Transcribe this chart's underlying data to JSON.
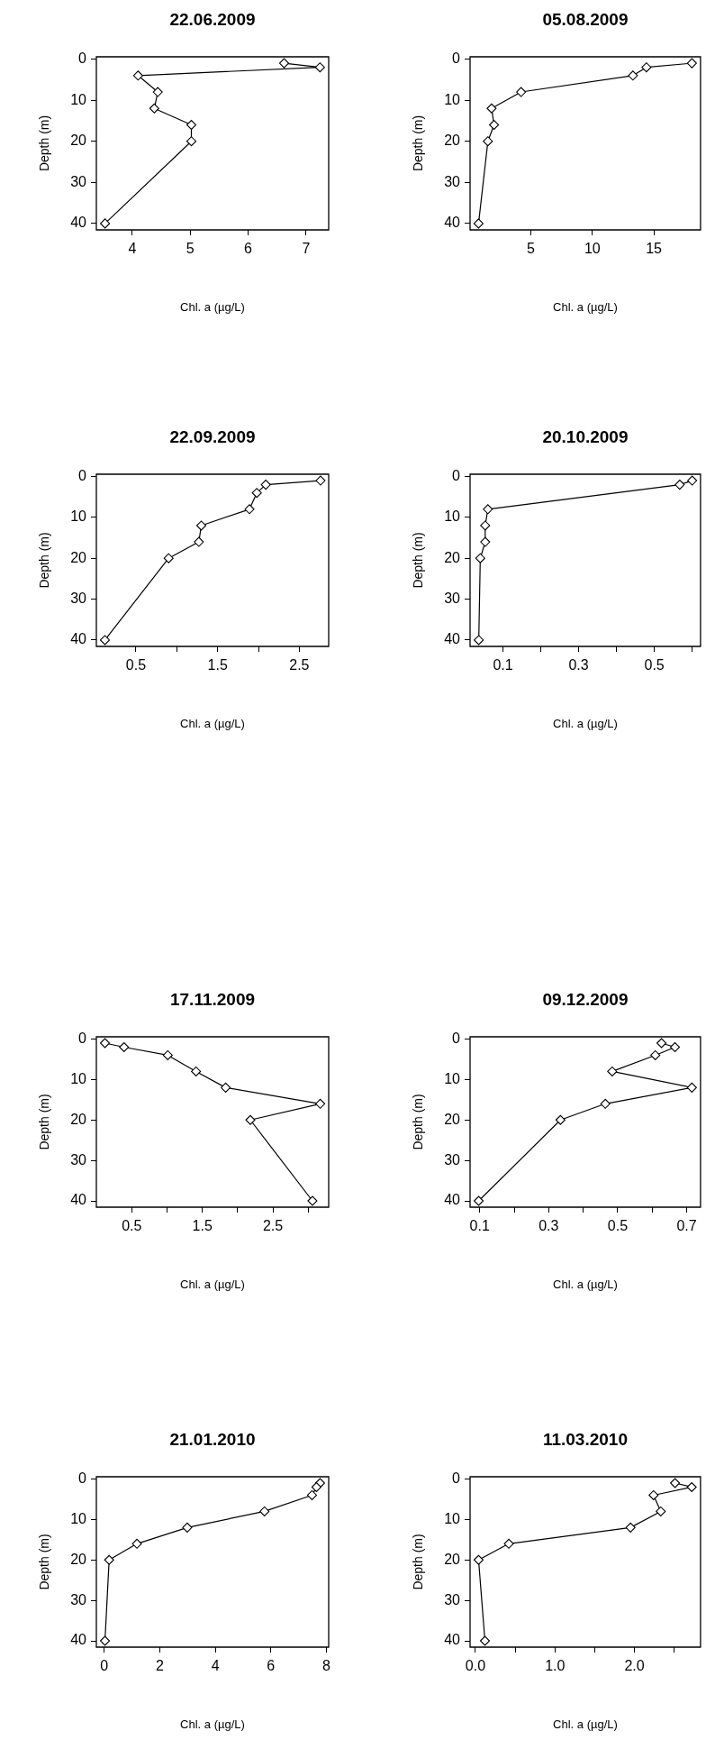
{
  "chart_data": [
    {
      "type": "line",
      "title": "22.06.2009",
      "xlabel": "Chl. a (µg/L)",
      "ylabel": "Depth (m)",
      "marker": "diamond",
      "grid": false,
      "legend": false,
      "color": "#000000",
      "x": [
        6.62,
        7.24,
        4.1,
        4.44,
        4.38,
        5.02,
        5.02,
        3.53
      ],
      "values": [
        1,
        2,
        4,
        8,
        12,
        16,
        20,
        40
      ],
      "xlim": [
        3.38,
        7.39
      ],
      "xticks": [
        4,
        5,
        6,
        7
      ],
      "ylim": [
        41.56,
        -0.56
      ],
      "yticks": [
        0,
        10,
        20,
        30,
        40
      ]
    },
    {
      "type": "line",
      "title": "05.08.2009",
      "xlabel": "Chl. a (µg/L)",
      "ylabel": "Depth (m)",
      "marker": "diamond",
      "grid": false,
      "legend": false,
      "color": "#000000",
      "x": [
        18.1,
        14.4,
        13.3,
        4.2,
        1.8,
        2.0,
        1.5,
        0.74
      ],
      "values": [
        1,
        2,
        4,
        8,
        12,
        16,
        20,
        40
      ],
      "xlim": [
        0.05,
        18.8
      ],
      "xticks": [
        5,
        10,
        15
      ],
      "ylim": [
        41.56,
        -0.56
      ],
      "yticks": [
        0,
        10,
        20,
        30,
        40
      ]
    },
    {
      "type": "line",
      "title": "22.09.2009",
      "xlabel": "Chl. a (µg/L)",
      "ylabel": "Depth (m)",
      "marker": "diamond",
      "grid": false,
      "legend": false,
      "color": "#000000",
      "x": [
        2.76,
        2.09,
        1.98,
        1.89,
        1.3,
        1.27,
        0.9,
        0.12
      ],
      "values": [
        1,
        2,
        4,
        8,
        12,
        16,
        20,
        40
      ],
      "xlim": [
        0.015,
        2.86
      ],
      "xticks": [
        0.5,
        {
          "value": 1,
          "label": null
        },
        1.5,
        {
          "value": 2,
          "label": null
        },
        2.5
      ],
      "ylim": [
        41.56,
        -0.56
      ],
      "yticks": [
        0,
        10,
        20,
        30,
        40
      ]
    },
    {
      "type": "line",
      "title": "20.10.2009",
      "xlabel": "Chl. a (µg/L)",
      "ylabel": "Depth (m)",
      "marker": "diamond",
      "grid": false,
      "legend": false,
      "color": "#000000",
      "x": [
        0.6,
        0.567,
        0.06,
        0.053,
        0.053,
        0.04,
        0.036
      ],
      "values": [
        1,
        2,
        8,
        12,
        16,
        20,
        40
      ],
      "xlim": [
        0.013,
        0.622
      ],
      "xticks": [
        0.1,
        {
          "value": 0.2,
          "label": null
        },
        0.3,
        {
          "value": 0.4,
          "label": null
        },
        0.5,
        {
          "value": 0.6,
          "label": null
        }
      ],
      "ylim": [
        41.56,
        -0.56
      ],
      "yticks": [
        0,
        10,
        20,
        30,
        40
      ]
    },
    {
      "type": "line",
      "title": "17.11.2009",
      "xlabel": "Chl. a (µg/L)",
      "ylabel": "Depth (m)",
      "marker": "diamond",
      "grid": false,
      "legend": false,
      "color": "#000000",
      "x": [
        0.12,
        0.39,
        1.01,
        1.41,
        1.83,
        3.17,
        2.18,
        3.06
      ],
      "values": [
        1,
        2,
        4,
        8,
        12,
        16,
        20,
        40
      ],
      "xlim": [
        -0.002,
        3.29
      ],
      "xticks": [
        0.5,
        {
          "value": 1,
          "label": null
        },
        1.5,
        {
          "value": 2,
          "label": null
        },
        2.5,
        {
          "value": 3,
          "label": null
        }
      ],
      "ylim": [
        41.56,
        -0.56
      ],
      "yticks": [
        0,
        10,
        20,
        30,
        40
      ]
    },
    {
      "type": "line",
      "title": "09.12.2009",
      "xlabel": "Chl. a (µg/L)",
      "ylabel": "Depth (m)",
      "marker": "diamond",
      "grid": false,
      "legend": false,
      "color": "#000000",
      "x": [
        0.627,
        0.666,
        0.609,
        0.484,
        0.715,
        0.464,
        0.334,
        0.097
      ],
      "values": [
        1,
        2,
        4,
        8,
        12,
        16,
        20,
        40
      ],
      "xlim": [
        0.072,
        0.74
      ],
      "xticks": [
        0.1,
        {
          "value": 0.2,
          "label": null
        },
        0.3,
        {
          "value": 0.4,
          "label": null
        },
        0.5,
        {
          "value": 0.6,
          "label": null
        },
        0.7
      ],
      "ylim": [
        41.56,
        -0.56
      ],
      "yticks": [
        0,
        10,
        20,
        30,
        40
      ]
    },
    {
      "type": "line",
      "title": "21.01.2010",
      "xlabel": "Chl. a (µg/L)",
      "ylabel": "Depth (m)",
      "marker": "diamond",
      "grid": false,
      "legend": false,
      "color": "#000000",
      "x": [
        7.77,
        7.64,
        7.48,
        5.77,
        2.99,
        1.18,
        0.18,
        0.03
      ],
      "values": [
        1,
        2,
        4,
        8,
        12,
        16,
        20,
        40
      ],
      "xlim": [
        -0.28,
        8.08
      ],
      "xticks": [
        0,
        2,
        4,
        6,
        8
      ],
      "ylim": [
        41.56,
        -0.56
      ],
      "yticks": [
        0,
        10,
        20,
        30,
        40
      ]
    },
    {
      "type": "line",
      "title": "11.03.2010",
      "xlabel": "Chl. a (µg/L)",
      "ylabel": "Depth (m)",
      "marker": "diamond",
      "grid": false,
      "legend": false,
      "color": "#000000",
      "x": [
        2.51,
        2.72,
        2.24,
        2.33,
        1.95,
        0.42,
        0.04,
        0.12
      ],
      "values": [
        1,
        2,
        4,
        8,
        12,
        16,
        20,
        40
      ],
      "xlim": [
        -0.067,
        2.83
      ],
      "xticks": [
        {
          "value": 0,
          "label": "0.0"
        },
        {
          "value": 0.5,
          "label": null
        },
        {
          "value": 1,
          "label": "1.0"
        },
        {
          "value": 1.5,
          "label": null
        },
        {
          "value": 2,
          "label": "2.0"
        },
        {
          "value": 2.5,
          "label": null
        }
      ],
      "ylim": [
        41.56,
        -0.56
      ],
      "yticks": [
        0,
        10,
        20,
        30,
        40
      ]
    }
  ]
}
